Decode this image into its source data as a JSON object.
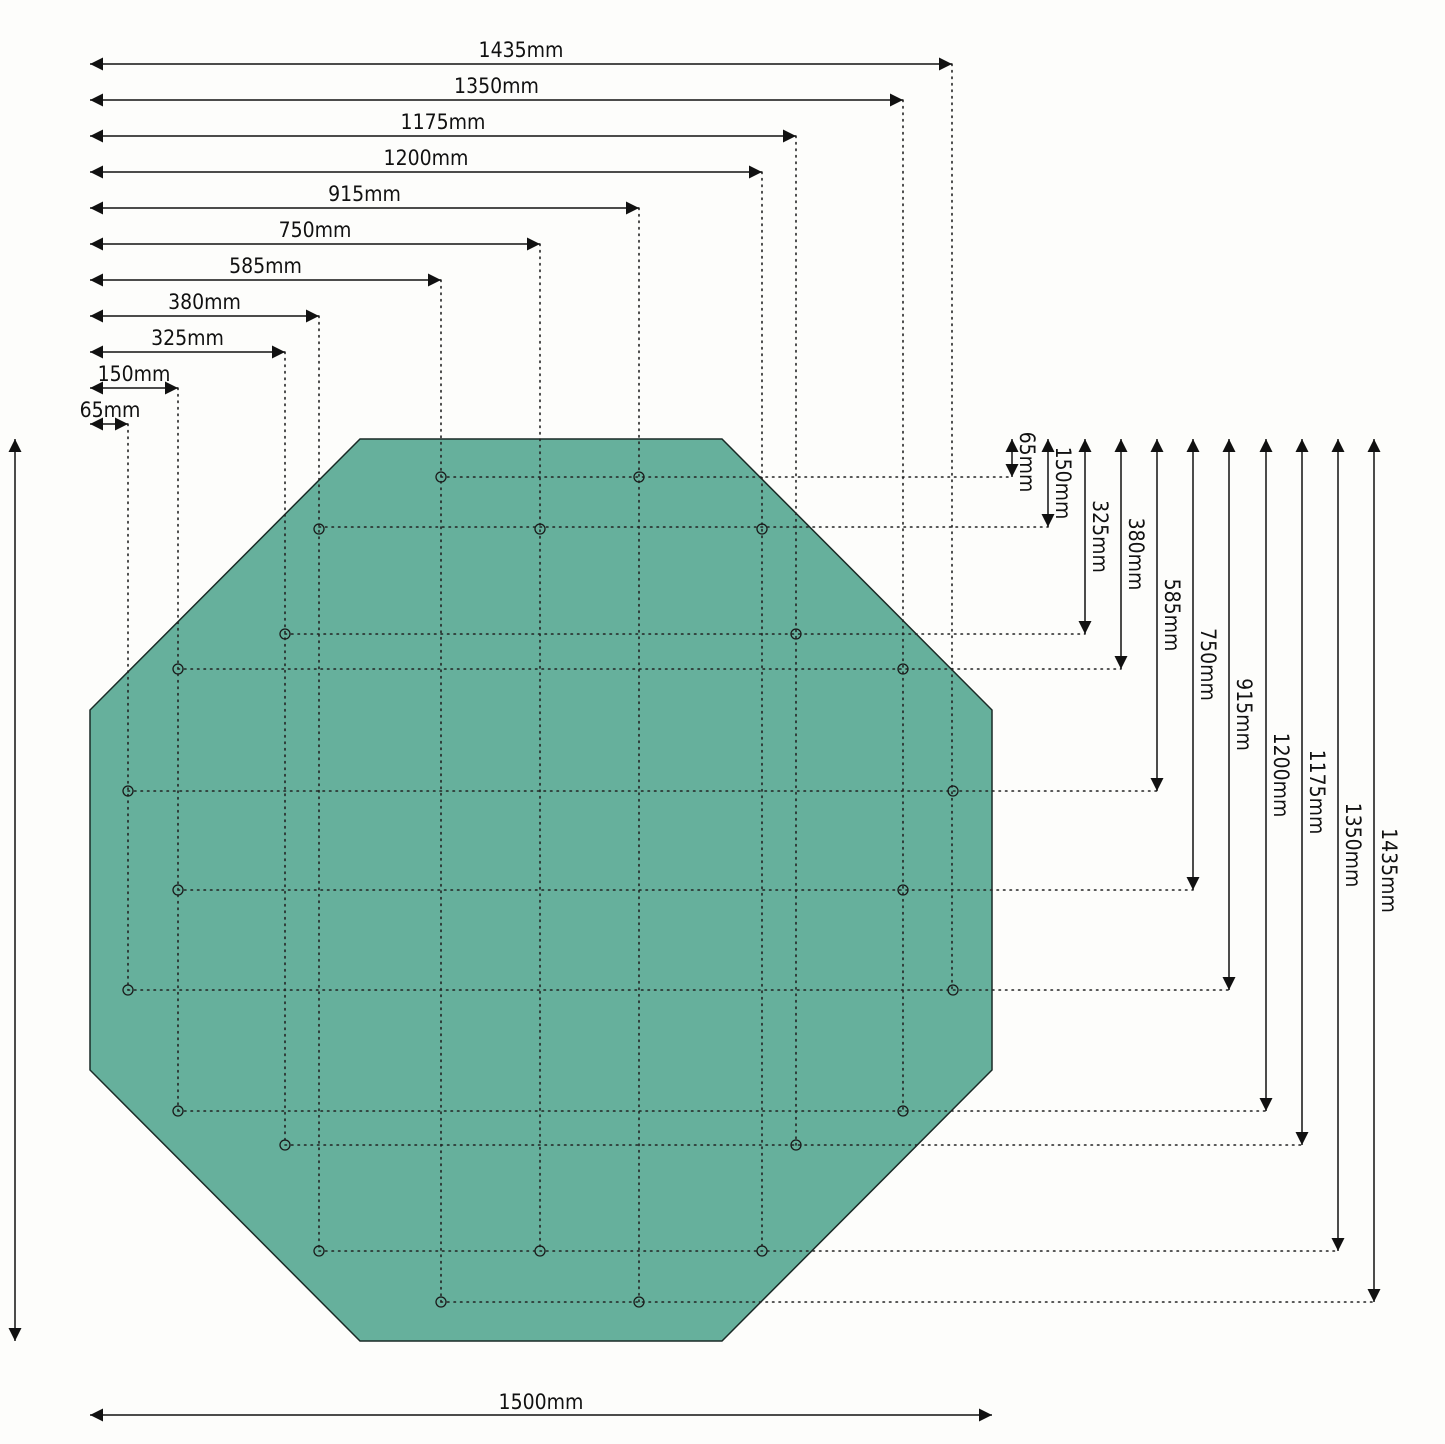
{
  "colors": {
    "fill": "#66b09c",
    "stroke": "#1a2a26",
    "line": "#111111"
  },
  "horizontal_dims": [
    "1435mm",
    "1350mm",
    "1175mm",
    "1200mm",
    "915mm",
    "750mm",
    "585mm",
    "380mm",
    "325mm",
    "150mm",
    "65mm"
  ],
  "vertical_dims": [
    "65mm",
    "150mm",
    "325mm",
    "380mm",
    "585mm",
    "750mm",
    "915mm",
    "1200mm",
    "1175mm",
    "1350mm",
    "1435mm"
  ],
  "width_label": "1500mm",
  "hole_icon": "circle-icon"
}
